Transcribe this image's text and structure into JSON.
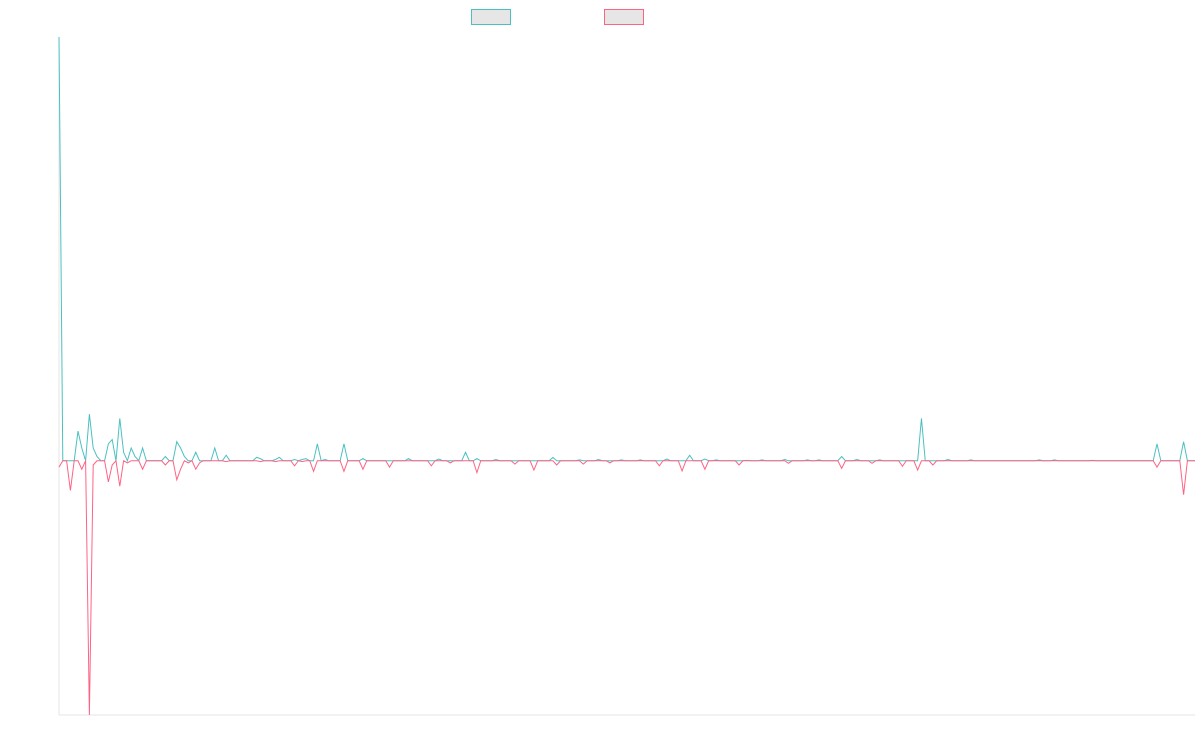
{
  "chart_data": {
    "type": "line",
    "title": "",
    "xlabel": "",
    "ylabel": "",
    "grid": false,
    "legend_position": "top-center",
    "x_count": 230,
    "ylim": [
      -60,
      100
    ],
    "colors": {
      "series_1": "#4bc0c0",
      "series_2": "#ff6384",
      "axis": "#e5e5e5",
      "legend_fill": "#e6e6e6"
    },
    "series": [
      {
        "name": "",
        "values": [
          100,
          0,
          0,
          0,
          0,
          7,
          3,
          0,
          11,
          3,
          1,
          0,
          0,
          4,
          5,
          0,
          10,
          2,
          0,
          3,
          1,
          0,
          3,
          0,
          0,
          0,
          0,
          0,
          1,
          0,
          0,
          4.5,
          3,
          1,
          0,
          0,
          2,
          0,
          0,
          0,
          0,
          0,
          0,
          0,
          1.3,
          0,
          0,
          0,
          0,
          0,
          0,
          0,
          0,
          0.5,
          0,
          0,
          0,
          0.3,
          0,
          0,
          0,
          0,
          0,
          0,
          0.3,
          0,
          0,
          0,
          0,
          0,
          0.3,
          0,
          0,
          0,
          0,
          0,
          0,
          0,
          0,
          0,
          0,
          0,
          0,
          0,
          0,
          0,
          0,
          0,
          0,
          0,
          0,
          0,
          0,
          0,
          0,
          0,
          0,
          0,
          0,
          0,
          0,
          0,
          0,
          0,
          0,
          0,
          0,
          0,
          0,
          0,
          0,
          0,
          0,
          0,
          0,
          0,
          0,
          0,
          0,
          0,
          0,
          0,
          0,
          0,
          0,
          0,
          0,
          0,
          0,
          0,
          0,
          0,
          0,
          0,
          0,
          0,
          0,
          0,
          0,
          0,
          0,
          0,
          0,
          0,
          0,
          0,
          0,
          0,
          0,
          0,
          0,
          0,
          0,
          0,
          0,
          0,
          0,
          0,
          0,
          0,
          0,
          0,
          0,
          0,
          0,
          0,
          0,
          0,
          0,
          0,
          0,
          0,
          0,
          0,
          0,
          0,
          0,
          0,
          0,
          0,
          0,
          0,
          0,
          0,
          0,
          0,
          0,
          0,
          0,
          0,
          0,
          0,
          0,
          0,
          0,
          0,
          0,
          0,
          0,
          0,
          0,
          0,
          0,
          0,
          0,
          0,
          0,
          0,
          0,
          0,
          0,
          0,
          0,
          0,
          0,
          0,
          0,
          0,
          0,
          0,
          0,
          0,
          0,
          0,
          0,
          0,
          0,
          0,
          0,
          0,
          0,
          0,
          0,
          0,
          0,
          0,
          0,
          0,
          0,
          0,
          0,
          0,
          0,
          0,
          0,
          0,
          0
        ]
      },
      {
        "name": "",
        "values": [
          -1.5,
          0,
          0,
          -7,
          0,
          0,
          -2,
          0,
          -60,
          -1,
          0,
          0,
          0,
          -5,
          -1,
          0,
          -6,
          0,
          -0.5,
          0,
          0,
          0,
          -2,
          0,
          0,
          0,
          0,
          0,
          -1,
          0,
          0,
          -4,
          -2,
          0,
          -0.5,
          0,
          -2,
          -0.5,
          0,
          0,
          0,
          0,
          0,
          0,
          -0.2,
          0,
          0,
          0,
          0,
          0,
          0,
          0,
          0,
          -0.2,
          0,
          0,
          0,
          -0.2,
          0,
          0,
          0,
          0,
          0,
          0,
          -0.2,
          0,
          0,
          0,
          0,
          0,
          0,
          0,
          0,
          0,
          0,
          0,
          0,
          0,
          0,
          0,
          0,
          0,
          0,
          0,
          0,
          0,
          0,
          0,
          0,
          0,
          0,
          0,
          0,
          0,
          0,
          0,
          0,
          0,
          0,
          0,
          0,
          0,
          0,
          0,
          0,
          0,
          0,
          0,
          0,
          0,
          0,
          0,
          0,
          0,
          0,
          0,
          0,
          0,
          0,
          0,
          0,
          0,
          0,
          0,
          0,
          0,
          0,
          0,
          0,
          0,
          0,
          0,
          0,
          0,
          0,
          0,
          0,
          0,
          0,
          0,
          0,
          0,
          0,
          0,
          0,
          0,
          0,
          0,
          0,
          0,
          0,
          0,
          0,
          0,
          0,
          0,
          0,
          0,
          0,
          0,
          0,
          0,
          0,
          0,
          0,
          0,
          0,
          0,
          0,
          0,
          0,
          0,
          0,
          0,
          0,
          0,
          0,
          0,
          0,
          0,
          0,
          0,
          0,
          0,
          0,
          0,
          0,
          0,
          0,
          0,
          0,
          0,
          0,
          0,
          0,
          0,
          0,
          0,
          0,
          0,
          0,
          0,
          0,
          0,
          0,
          0,
          0,
          0,
          0,
          0,
          0,
          0,
          0,
          0,
          0,
          0,
          0,
          0,
          0,
          0,
          0,
          0,
          0,
          0,
          0,
          0,
          0,
          0,
          0,
          0,
          0,
          0,
          0,
          0,
          0,
          0,
          0,
          0,
          0,
          0,
          0,
          0,
          0,
          0,
          0,
          0
        ]
      }
    ],
    "spikes_series_1": [
      [
        31,
        4.5
      ],
      [
        41,
        3
      ],
      [
        52,
        0.8
      ],
      [
        58,
        0.8
      ],
      [
        62,
        0.3
      ],
      [
        65,
        0.5
      ],
      [
        68,
        4
      ],
      [
        75,
        4
      ],
      [
        80,
        0.5
      ],
      [
        92,
        0.5
      ],
      [
        100,
        0.4
      ],
      [
        107,
        2
      ],
      [
        110,
        0.5
      ],
      [
        115,
        0.3
      ],
      [
        130,
        0.8
      ],
      [
        137,
        0.2
      ],
      [
        142,
        0.3
      ],
      [
        148,
        0.2
      ],
      [
        153,
        0.2
      ],
      [
        160,
        0.4
      ],
      [
        166,
        1.3
      ],
      [
        170,
        0.4
      ],
      [
        173,
        0.2
      ],
      [
        181,
        0.1
      ],
      [
        185,
        0.2
      ],
      [
        191,
        0.3
      ],
      [
        197,
        0.2
      ],
      [
        200,
        0.2
      ],
      [
        206,
        1
      ],
      [
        210,
        0.3
      ],
      [
        216,
        0.2
      ],
      [
        227,
        10
      ],
      [
        234,
        0.3
      ],
      [
        240,
        0.2
      ],
      [
        258,
        0.2
      ],
      [
        262,
        0.2
      ],
      [
        272,
        0.1
      ],
      [
        289,
        4
      ],
      [
        296,
        4.5
      ]
    ],
    "spikes_series_2": [
      [
        31,
        -4.5
      ],
      [
        62,
        -1.2
      ],
      [
        67,
        -2.5
      ],
      [
        75,
        -2.5
      ],
      [
        80,
        -2
      ],
      [
        87,
        -1.5
      ],
      [
        98,
        -1.2
      ],
      [
        103,
        -0.5
      ],
      [
        110,
        -2.8
      ],
      [
        120,
        -0.8
      ],
      [
        125,
        -2.2
      ],
      [
        131,
        -1
      ],
      [
        138,
        -0.8
      ],
      [
        145,
        -0.5
      ],
      [
        158,
        -1.2
      ],
      [
        164,
        -2.4
      ],
      [
        170,
        -2
      ],
      [
        179,
        -1
      ],
      [
        192,
        -0.6
      ],
      [
        206,
        -1.8
      ],
      [
        214,
        -0.6
      ],
      [
        222,
        -1.3
      ],
      [
        226,
        -2.2
      ],
      [
        230,
        -1
      ],
      [
        289,
        -1.5
      ],
      [
        296,
        -8
      ]
    ]
  }
}
